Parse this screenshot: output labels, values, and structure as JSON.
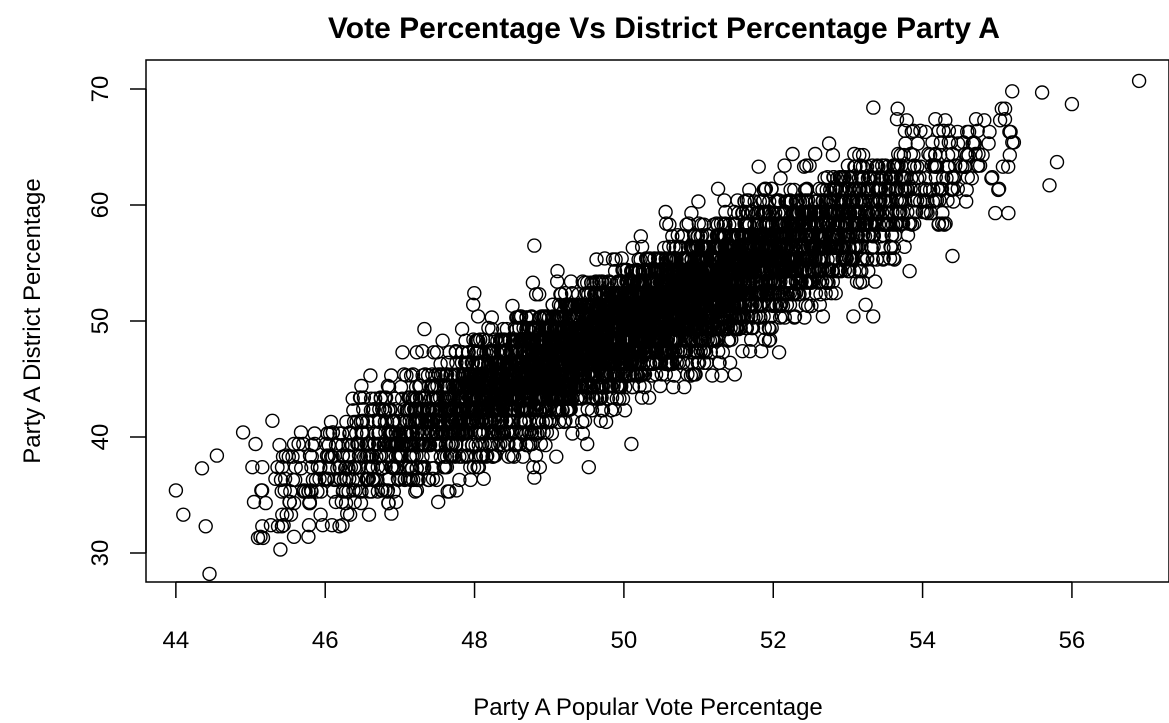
{
  "chart_data": {
    "type": "scatter",
    "title": "Vote Percentage Vs District Percentage Party A",
    "xlabel": "Party A Popular Vote Percentage",
    "ylabel": "Party A District Percentage",
    "xlim": [
      43.6,
      57.3
    ],
    "ylim": [
      27.5,
      72.5
    ],
    "xticks": [
      44,
      46,
      48,
      50,
      52,
      54,
      56
    ],
    "yticks": [
      30,
      40,
      50,
      60,
      70
    ],
    "grid": false,
    "legend": "none",
    "marker": "open-circle",
    "relationship": {
      "slope": 3.1,
      "intercept": -105.5,
      "spread_sd": 2.6
    },
    "bulk_point_count": 6500,
    "notable_points": [
      {
        "x": 56.9,
        "y": 70.7
      },
      {
        "x": 56.0,
        "y": 68.7
      },
      {
        "x": 55.7,
        "y": 61.7
      },
      {
        "x": 55.8,
        "y": 63.7
      },
      {
        "x": 55.6,
        "y": 69.7
      },
      {
        "x": 55.2,
        "y": 69.8
      },
      {
        "x": 54.4,
        "y": 55.6
      },
      {
        "x": 44.0,
        "y": 35.4
      },
      {
        "x": 44.1,
        "y": 33.3
      },
      {
        "x": 44.45,
        "y": 28.2
      },
      {
        "x": 44.35,
        "y": 37.3
      },
      {
        "x": 44.55,
        "y": 38.4
      },
      {
        "x": 44.4,
        "y": 32.3
      },
      {
        "x": 44.9,
        "y": 40.4
      },
      {
        "x": 45.4,
        "y": 30.3
      },
      {
        "x": 48.8,
        "y": 56.5
      },
      {
        "x": 50.1,
        "y": 39.4
      },
      {
        "x": 48.8,
        "y": 36.5
      }
    ]
  }
}
